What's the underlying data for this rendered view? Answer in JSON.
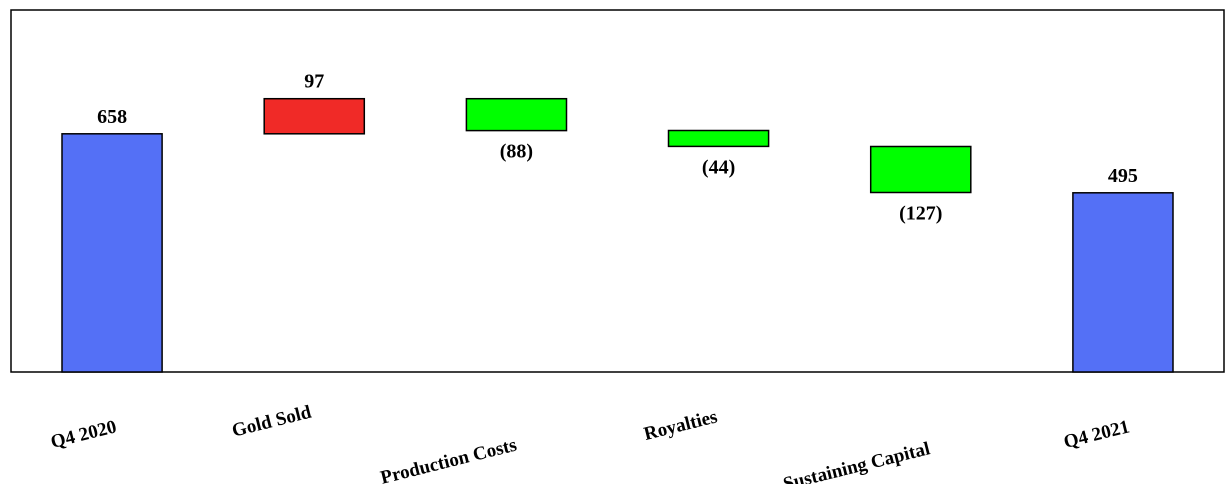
{
  "chart_data": {
    "type": "waterfall",
    "categories": [
      "Q4 2020",
      "Gold Sold",
      "Production Costs",
      "Royalties",
      "Sustaining Capital",
      "Q4 2021"
    ],
    "values": [
      658,
      97,
      -88,
      -44,
      -127,
      495
    ],
    "kinds": [
      "total",
      "delta",
      "delta",
      "delta",
      "delta",
      "total"
    ],
    "value_labels": [
      "658",
      "97",
      "(88)",
      "(44)",
      "(127)",
      "495"
    ],
    "ylim": [
      0,
      1000
    ],
    "grid": false,
    "legend": "none",
    "colors": {
      "total": "#5470f6",
      "increase": "#f02a27",
      "decrease": "#00ff00",
      "border": "#000000"
    }
  }
}
